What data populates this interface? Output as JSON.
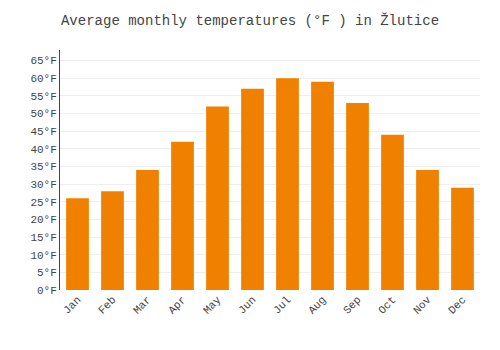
{
  "chart_data": {
    "type": "bar",
    "title": "Average monthly temperatures (°F ) in Žlutice",
    "categories": [
      "Jan",
      "Feb",
      "Mar",
      "Apr",
      "May",
      "Jun",
      "Jul",
      "Aug",
      "Sep",
      "Oct",
      "Nov",
      "Dec"
    ],
    "values": [
      26,
      28,
      34,
      42,
      52,
      57,
      60,
      59,
      53,
      44,
      34,
      29
    ],
    "color": "#F08000",
    "ylim": [
      0,
      68
    ],
    "yticks": [
      {
        "value": 0,
        "label": "0°F"
      },
      {
        "value": 5,
        "label": "5°F"
      },
      {
        "value": 10,
        "label": "10°F"
      },
      {
        "value": 15,
        "label": "15°F"
      },
      {
        "value": 20,
        "label": "20°F"
      },
      {
        "value": 25,
        "label": "25°F"
      },
      {
        "value": 30,
        "label": "30°F"
      },
      {
        "value": 35,
        "label": "35°F"
      },
      {
        "value": 40,
        "label": "40°F"
      },
      {
        "value": 45,
        "label": "45°F"
      },
      {
        "value": 50,
        "label": "50°F"
      },
      {
        "value": 55,
        "label": "55°F"
      },
      {
        "value": 60,
        "label": "60°F"
      },
      {
        "value": 65,
        "label": "65°F"
      }
    ],
    "grid": true
  }
}
